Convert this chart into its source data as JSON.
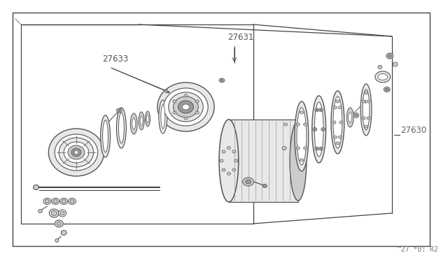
{
  "bg_color": "#ffffff",
  "line_color": "#888888",
  "dark_line": "#444444",
  "thin_line": "#999999",
  "fig_width": 6.4,
  "fig_height": 3.72,
  "dpi": 100,
  "label_27630": "27630",
  "label_27631": "27631",
  "label_27633": "27633",
  "footer_text": "^27 *0: R2",
  "part_fill": "#f0f0f0",
  "part_edge": "#555555",
  "white": "#ffffff",
  "light_gray": "#e8e8e8",
  "mid_gray": "#cccccc",
  "dark_gray": "#999999"
}
